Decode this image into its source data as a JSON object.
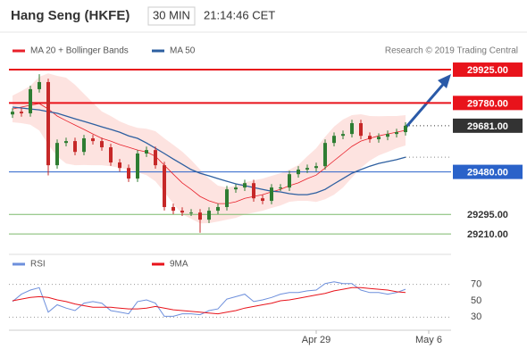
{
  "chart_data": {
    "type": "candlestick",
    "title": "Hang Seng (HKFE)",
    "interval": "30 MIN",
    "time": "21:14:46 CET",
    "source": "Research © 2019 Trading Central",
    "xlim": [
      -0.4,
      49.1
    ],
    "xticks": [
      {
        "value": 34,
        "label": "Apr 29"
      },
      {
        "value": 46.6,
        "label": "May 6"
      }
    ],
    "ylim": [
      29121,
      29964
    ],
    "up_color": "#2e7d32",
    "down_color": "#c62828",
    "candles": {
      "open": [
        29730,
        29742,
        29735,
        29840,
        29871,
        29509,
        29606,
        29614,
        29567,
        29626,
        29614,
        29587,
        29521,
        29497,
        29451,
        29560,
        29575,
        29509,
        29327,
        29311,
        29303,
        29303,
        29272,
        29311,
        29327,
        29404,
        29412,
        29431,
        29365,
        29354,
        29412,
        29412,
        29470,
        29490,
        29497,
        29505,
        29606,
        29637,
        29645,
        29692,
        29637,
        29622,
        29633,
        29645,
        29653
      ],
      "high": [
        29757,
        29757,
        29855,
        29905,
        29886,
        29621,
        29629,
        29629,
        29641,
        29641,
        29629,
        29602,
        29536,
        29512,
        29575,
        29590,
        29590,
        29524,
        29342,
        29326,
        29318,
        29318,
        29326,
        29342,
        29419,
        29427,
        29446,
        29446,
        29380,
        29427,
        29427,
        29485,
        29505,
        29512,
        29520,
        29621,
        29652,
        29660,
        29707,
        29707,
        29652,
        29648,
        29660,
        29668,
        29696
      ],
      "low": [
        29715,
        29720,
        29720,
        29825,
        29465,
        29494,
        29591,
        29552,
        29552,
        29599,
        29572,
        29506,
        29482,
        29436,
        29436,
        29545,
        29494,
        29312,
        29296,
        29288,
        29288,
        29215,
        29257,
        29296,
        29312,
        29389,
        29397,
        29350,
        29339,
        29339,
        29397,
        29397,
        29455,
        29475,
        29482,
        29490,
        29591,
        29622,
        29630,
        29622,
        29607,
        29607,
        29618,
        29630,
        29638
      ],
      "close": [
        29742,
        29735,
        29840,
        29871,
        29509,
        29606,
        29614,
        29567,
        29626,
        29614,
        29587,
        29521,
        29497,
        29451,
        29560,
        29575,
        29509,
        29327,
        29311,
        29303,
        29303,
        29272,
        29311,
        29327,
        29404,
        29412,
        29431,
        29365,
        29354,
        29412,
        29412,
        29470,
        29490,
        29497,
        29505,
        29606,
        29637,
        29645,
        29692,
        29637,
        29622,
        29633,
        29645,
        29653,
        29681
      ]
    },
    "series": [
      {
        "name": "MA 20 + Bollinger Bands",
        "color": "#e8202a",
        "values": [
          29754,
          29762,
          29770,
          29777,
          29754,
          29723,
          29703,
          29684,
          29665,
          29645,
          29626,
          29614,
          29599,
          29587,
          29575,
          29567,
          29548,
          29509,
          29470,
          29432,
          29404,
          29373,
          29354,
          29342,
          29342,
          29350,
          29365,
          29373,
          29381,
          29393,
          29404,
          29420,
          29432,
          29451,
          29466,
          29497,
          29529,
          29560,
          29591,
          29614,
          29626,
          29637,
          29645,
          29653,
          29661
        ],
        "upper": [
          29812,
          29832,
          29855,
          29894,
          29909,
          29898,
          29890,
          29859,
          29820,
          29781,
          29743,
          29723,
          29700,
          29684,
          29672,
          29668,
          29657,
          29626,
          29598,
          29568,
          29532,
          29490,
          29451,
          29420,
          29412,
          29420,
          29435,
          29443,
          29451,
          29463,
          29474,
          29490,
          29510,
          29548,
          29583,
          29633,
          29677,
          29708,
          29727,
          29731,
          29723,
          29722,
          29723,
          29723,
          29727
        ],
        "lower": [
          29696,
          29692,
          29685,
          29660,
          29599,
          29548,
          29516,
          29509,
          29510,
          29509,
          29509,
          29505,
          29498,
          29490,
          29478,
          29466,
          29439,
          29392,
          29342,
          29296,
          29276,
          29256,
          29257,
          29264,
          29272,
          29280,
          29295,
          29303,
          29311,
          29323,
          29334,
          29350,
          29354,
          29354,
          29349,
          29361,
          29381,
          29412,
          29455,
          29497,
          29529,
          29552,
          29567,
          29583,
          29595
        ]
      },
      {
        "name": "MA 50",
        "color": "#2d5fa0",
        "values": [
          29762,
          29758,
          29754,
          29750,
          29742,
          29735,
          29723,
          29711,
          29700,
          29688,
          29676,
          29665,
          29653,
          29637,
          29626,
          29606,
          29583,
          29560,
          29536,
          29513,
          29490,
          29474,
          29463,
          29451,
          29439,
          29428,
          29420,
          29412,
          29404,
          29396,
          29393,
          29385,
          29381,
          29381,
          29389,
          29404,
          29428,
          29451,
          29474,
          29490,
          29505,
          29517,
          29525,
          29533,
          29544
        ]
      }
    ],
    "levels": [
      {
        "value": 29925,
        "label": "29925.00",
        "color": "#e8131b",
        "line": "solid",
        "boxed": true
      },
      {
        "value": 29780,
        "label": "29780.00",
        "color": "#e8131b",
        "line": "solid",
        "boxed": true
      },
      {
        "value": 29681,
        "label": "29681.00",
        "color": "#333333",
        "line": "dotted",
        "boxed": true
      },
      {
        "value": 29480,
        "label": "29480.00",
        "color": "#2a62c9",
        "line": "solid",
        "boxed": true
      },
      {
        "value": 29295,
        "label": "29295.00",
        "color": "#7cb96b",
        "line": "solid",
        "boxed": false
      },
      {
        "value": 29210,
        "label": "29210.00",
        "color": "#7cb96b",
        "line": "solid",
        "boxed": false
      }
    ],
    "rsi": {
      "ylim": [
        14,
        87
      ],
      "yticks": [
        30,
        50,
        70
      ],
      "reference_lines": [
        30,
        70
      ],
      "series": [
        {
          "name": "RSI",
          "color": "#6d8fdc",
          "values": [
            49,
            58,
            63,
            66,
            36,
            45,
            41,
            38,
            47,
            49,
            47,
            38,
            36,
            34,
            49,
            51,
            47,
            31,
            31,
            34,
            34,
            33,
            38,
            40,
            52,
            55,
            58,
            49,
            51,
            54,
            58,
            60,
            60,
            62,
            63,
            71,
            73,
            71,
            71,
            63,
            60,
            60,
            58,
            60,
            64
          ]
        },
        {
          "name": "9MA",
          "color": "#e8131b",
          "values": [
            50,
            52,
            54,
            55,
            54,
            51,
            49,
            46,
            44,
            42,
            42,
            42,
            41,
            40,
            40,
            41,
            43,
            41,
            39,
            38,
            37,
            36,
            35,
            34,
            36,
            38,
            41,
            43,
            45,
            47,
            50,
            51,
            53,
            55,
            57,
            59,
            62,
            64,
            66,
            66,
            65,
            64,
            63,
            61,
            60
          ]
        }
      ]
    }
  }
}
